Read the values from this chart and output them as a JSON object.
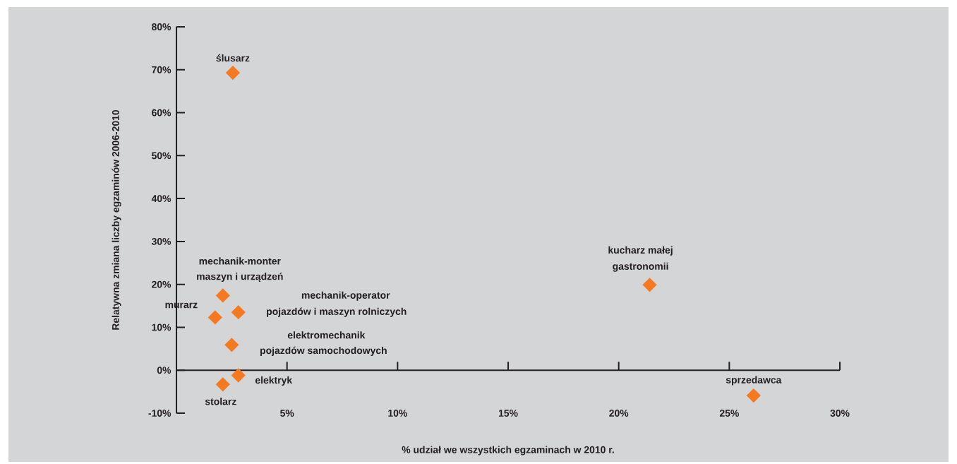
{
  "chart_data": {
    "type": "scatter",
    "xlabel": "% udział we wszystkich egzaminach w 2010 r.",
    "ylabel": "Relatywna zmiana liczby egzaminów 2006-2010",
    "xlim": [
      0,
      30
    ],
    "ylim": [
      -10,
      80
    ],
    "xticks": [
      {
        "value": 5,
        "label": "5%"
      },
      {
        "value": 10,
        "label": "10%"
      },
      {
        "value": 15,
        "label": "15%"
      },
      {
        "value": 20,
        "label": "20%"
      },
      {
        "value": 25,
        "label": "25%"
      },
      {
        "value": 30,
        "label": "30%"
      }
    ],
    "yticks": [
      {
        "value": -10,
        "label": "-10%"
      },
      {
        "value": 0,
        "label": "0%"
      },
      {
        "value": 10,
        "label": "10%"
      },
      {
        "value": 20,
        "label": "20%"
      },
      {
        "value": 30,
        "label": "30%"
      },
      {
        "value": 40,
        "label": "40%"
      },
      {
        "value": 50,
        "label": "50%"
      },
      {
        "value": 60,
        "label": "60%"
      },
      {
        "value": 70,
        "label": "70%"
      },
      {
        "value": 80,
        "label": "80%"
      }
    ],
    "marker": "diamond",
    "series": [
      {
        "color": "#f47920",
        "x": [
          2.55,
          2.1,
          2.8,
          1.75,
          2.5,
          2.8,
          2.1,
          21.4,
          26.1
        ],
        "values": [
          69.3,
          17.4,
          13.5,
          12.3,
          5.9,
          -1.2,
          -3.3,
          19.9,
          -5.9
        ]
      }
    ],
    "annotations": [
      {
        "text": "ślusarz",
        "x": 2.55,
        "y": 69.3
      },
      "mechanik-monter",
      {
        "text": "maszyn i urządzeń",
        "x": 2.1,
        "y": 17.4
      },
      "mechanik-operator",
      {
        "text": "pojazdów i maszyn rolniczych",
        "x": 2.8,
        "y": 13.5
      },
      {
        "text": "murarz",
        "x": 1.75,
        "y": 12.3
      },
      "elektromechanik",
      {
        "text": "pojazdów samochodowych",
        "x": 2.5,
        "y": 5.9
      },
      {
        "text": "elektryk",
        "x": 2.8,
        "y": -1.2
      },
      {
        "text": "stolarz",
        "x": 2.1,
        "y": -3.3
      },
      "kucharz małej",
      {
        "text": "gastronomii",
        "x": 21.4,
        "y": 19.9
      },
      {
        "text": "sprzedawca",
        "x": 26.1,
        "y": -5.9
      }
    ]
  }
}
